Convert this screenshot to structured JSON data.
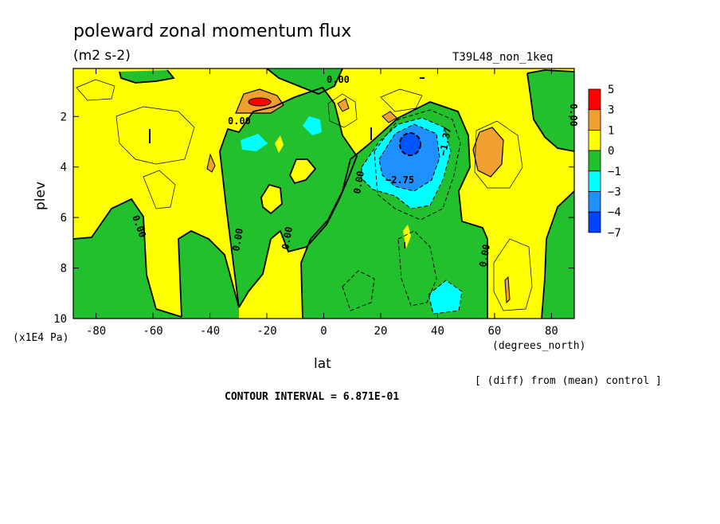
{
  "chart_data": {
    "type": "heatmap",
    "title": "poleward zonal momentum flux",
    "subtitle": "(m2 s-2)",
    "run_label": "T39L48_non_1keq",
    "xlabel": "lat",
    "x_unit": "(degrees_north)",
    "ylabel": "plev",
    "y_unit": "(x1E4 Pa)",
    "xlim": [
      -88,
      88
    ],
    "ylim": [
      10,
      0.1
    ],
    "x_ticks": [
      -80,
      -60,
      -40,
      -20,
      0,
      20,
      40,
      60,
      80
    ],
    "y_ticks": [
      2,
      4,
      6,
      8,
      10
    ],
    "colorbar": {
      "labels": [
        "5",
        "3",
        "1",
        "0",
        "−1",
        "−3",
        "−4",
        "−7"
      ],
      "colors": [
        "#ff0000",
        "#f0a030",
        "#ffff00",
        "#22c02c",
        "#00ffff",
        "#1e90ff",
        "#0044ff"
      ]
    },
    "contour_labels": [
      "0.00",
      "0.00",
      "0.00",
      "0.00",
      "0.00",
      "0.00",
      "0.00",
      "0.00",
      "0.00",
      "−2.75",
      "−1.37",
      "0.00"
    ],
    "footer": "CONTOUR INTERVAL = 6.871E-01",
    "note": "[ (diff) from (mean) control ]",
    "field": [
      {
        "lat": -22,
        "plev": 1.5,
        "v": 3.5
      },
      {
        "lat": -20,
        "plev": 1.4,
        "v": 4.5
      },
      {
        "lat": -30,
        "plev": 3.1,
        "v": -1.5
      },
      {
        "lat": -4,
        "plev": 2.4,
        "v": -1.5
      },
      {
        "lat": 31,
        "plev": 3.2,
        "v": -4.5
      },
      {
        "lat": 32,
        "plev": 3.5,
        "v": -3.5
      },
      {
        "lat": 44,
        "plev": 9.3,
        "v": -1.5
      },
      {
        "lat": 57,
        "plev": 3.5,
        "v": 1.5
      },
      {
        "lat": 7,
        "plev": 1.4,
        "v": 1.5
      }
    ]
  }
}
